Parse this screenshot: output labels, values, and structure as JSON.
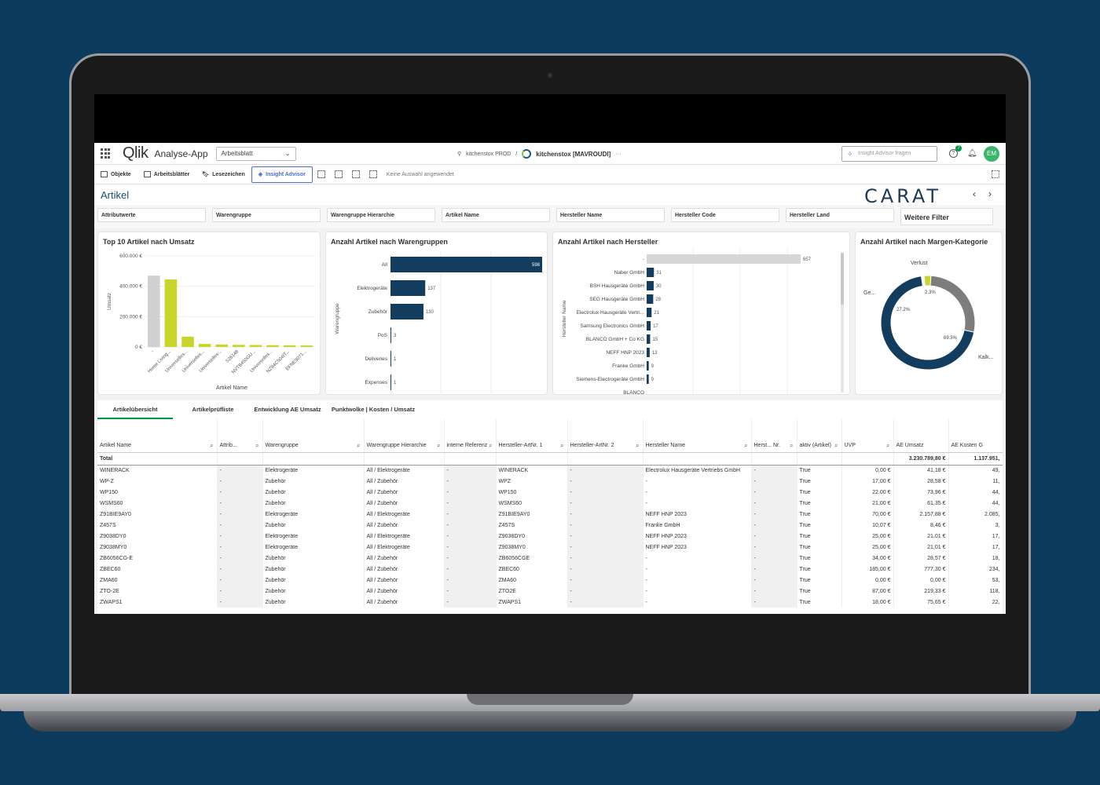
{
  "topbar": {
    "logo": "Qlik",
    "app_title": "Analyse-App",
    "sheet_select": "Arbeitsblatt",
    "space_env": "kitchenstox PROD",
    "separator": "/",
    "space_name": "kitchenstox [MAVROUDI]",
    "more": "···",
    "ask_placeholder": "Insight Advisor fragen",
    "help_badge": "7",
    "avatar": "EM"
  },
  "toolbar": {
    "objects": "Objekte",
    "sheets": "Arbeitsblätter",
    "bookmarks": "Lesezeichen",
    "insight_advisor": "Insight Advisor",
    "no_selection": "Keine Auswahl angewendet"
  },
  "sheet": {
    "title": "Artikel",
    "brand": "CARAT",
    "prev": "‹",
    "next": "›"
  },
  "filters": [
    "Attributwerte",
    "Warengruppe",
    "Warengruppe Hierarchie",
    "Artikel Name",
    "Hersteller Name",
    "Hersteller Code",
    "Hersteller Land"
  ],
  "more_filters": "Weitere Filter",
  "charts": {
    "top10": {
      "title": "Top 10 Artikel nach Umsatz",
      "ylabel": "Umsatz",
      "xlabel": "Artikel Name",
      "yticks": [
        "600.000 €",
        "400.000 €",
        "200.000 €",
        "0 €"
      ],
      "colors": [
        "#d0d0d0",
        "#c9d52b"
      ]
    },
    "warengruppen": {
      "title": "Anzahl Artikel nach Warengruppen",
      "ylabel": "Warengruppe",
      "color": "#123d5e"
    },
    "hersteller": {
      "title": "Anzahl Artikel nach Hersteller",
      "ylabel": "Hersteller Name",
      "color": "#123d5e"
    },
    "margen": {
      "title": "Anzahl Artikel nach Margen-Kategorie",
      "labels": [
        "Verlust",
        "Ge...",
        "Kalk..."
      ],
      "pct": [
        "2.3%",
        "27.2%",
        "69.5%"
      ],
      "colors": [
        "#c9d52b",
        "#7d7d7d",
        "#123d5e"
      ]
    }
  },
  "chart_data": [
    {
      "type": "bar",
      "title": "Top 10 Artikel nach Umsatz",
      "xlabel": "Artikel Name",
      "ylabel": "Umsatz",
      "ylim": [
        0,
        600000
      ],
      "categories": [
        "-",
        "Home Living...",
        "Universelles...",
        "Universelles...",
        "Universelles...",
        "526148",
        "NVTB450GU...",
        "Universelles...",
        "NZ84C504IT...",
        "EFNE9071..."
      ],
      "values": [
        470000,
        445000,
        68000,
        20000,
        16000,
        14000,
        13000,
        12000,
        11000,
        10000
      ]
    },
    {
      "type": "bar",
      "title": "Anzahl Artikel nach Warengruppen",
      "ylabel": "Warengruppe",
      "orientation": "horizontal",
      "categories": [
        "All",
        "Elektrogeräte",
        "Zubehör",
        "PoS",
        "Deliveries",
        "Expenses"
      ],
      "values": [
        598,
        137,
        130,
        3,
        1,
        1
      ]
    },
    {
      "type": "bar",
      "title": "Anzahl Artikel nach Hersteller",
      "ylabel": "Hersteller Name",
      "orientation": "horizontal",
      "categories": [
        "-",
        "Naber GmbH",
        "BSH Hausgeräte GmbH",
        "SEG Hausgeräte GmbH",
        "Electrolux Hausgeräte Vertri...",
        "Samsung Electronics GmbH",
        "BLANCO GmbH + Co KG",
        "NEFF HNP 2023",
        "Franke GmbH",
        "Siemens-Electrogeräte GmbH",
        "BLANCO"
      ],
      "values": [
        657,
        31,
        30,
        28,
        21,
        17,
        15,
        13,
        9,
        9,
        0
      ]
    },
    {
      "type": "pie",
      "title": "Anzahl Artikel nach Margen-Kategorie",
      "categories": [
        "Verlust",
        "Ge...",
        "Kalk..."
      ],
      "values": [
        2.3,
        27.2,
        69.5
      ]
    }
  ],
  "tabs": [
    "Artikelübersicht",
    "Artikelprüfliste",
    "Entwicklung AE Umsatz",
    "Punktwolke | Kosten / Umsatz"
  ],
  "table": {
    "headers": [
      "Artikel Name",
      "Attrib...",
      "Warengruppe",
      "Warengruppe Hierarchie",
      "interne Referenz",
      "Hersteller-ArtNr. 1",
      "Hersteller-ArtNr. 2",
      "Hersteller Name",
      "Herst... Nr.",
      "aktiv (Artikel)",
      "UVP",
      "AE Umsatz",
      "AE Kosten G"
    ],
    "total": [
      "Total",
      "",
      "",
      "",
      "",
      "",
      "",
      "",
      "",
      "",
      "",
      "3.230.789,80 €",
      "1.137.951,"
    ],
    "rows": [
      [
        "WINERACK",
        "-",
        "Elektrogeräte",
        "All / Elektrogeräte",
        "-",
        "WINERACK",
        "-",
        "Electrolux Hausgeräte Vertriebs GmbH",
        "-",
        "True",
        "0,00 €",
        "41,18 €",
        "49,"
      ],
      [
        "WP-Z",
        "-",
        "Zubehör",
        "All / Zubehör",
        "-",
        "WPZ",
        "-",
        "-",
        "-",
        "True",
        "17,00 €",
        "28,58 €",
        "11,"
      ],
      [
        "WP150",
        "-",
        "Zubehör",
        "All / Zubehör",
        "-",
        "WP150",
        "-",
        "-",
        "-",
        "True",
        "22,00 €",
        "73,96 €",
        "44,"
      ],
      [
        "WSMS60",
        "-",
        "Zubehör",
        "All / Zubehör",
        "-",
        "WSMS60",
        "-",
        "-",
        "-",
        "True",
        "21,00 €",
        "61,35 €",
        "44,"
      ],
      [
        "Z91BIE9AY0",
        "-",
        "Elektrogeräte",
        "All / Elektrogeräte",
        "-",
        "Z91BIE9AY0",
        "-",
        "NEFF HNP 2023",
        "-",
        "True",
        "70,00 €",
        "2.157,88 €",
        "2.085,"
      ],
      [
        "Z457S",
        "-",
        "Zubehör",
        "All / Zubehör",
        "-",
        "Z457S",
        "-",
        "Franke GmbH",
        "-",
        "True",
        "10,07 €",
        "8,46 €",
        "3,"
      ],
      [
        "Z9038DY0",
        "-",
        "Elektrogeräte",
        "All / Elektrogeräte",
        "-",
        "Z9038DY0",
        "-",
        "NEFF HNP 2023",
        "-",
        "True",
        "25,00 €",
        "21,01 €",
        "17,"
      ],
      [
        "Z9038MY0",
        "-",
        "Elektrogeräte",
        "All / Elektrogeräte",
        "-",
        "Z9038MY0",
        "-",
        "NEFF HNP 2023",
        "-",
        "True",
        "25,00 €",
        "21,01 €",
        "17,"
      ],
      [
        "ZB6056CG-E",
        "-",
        "Zubehör",
        "All / Zubehör",
        "-",
        "ZB6056CGE",
        "-",
        "-",
        "-",
        "True",
        "34,00 €",
        "28,57 €",
        "18,"
      ],
      [
        "ZBEC60",
        "-",
        "Zubehör",
        "All / Zubehör",
        "-",
        "ZBEC60",
        "-",
        "-",
        "-",
        "True",
        "185,00 €",
        "777,30 €",
        "234,"
      ],
      [
        "ZMA60",
        "-",
        "Zubehör",
        "All / Zubehör",
        "-",
        "ZMA60",
        "-",
        "-",
        "-",
        "True",
        "0,00 €",
        "0,00 €",
        "53,"
      ],
      [
        "ZTO-2E",
        "-",
        "Zubehör",
        "All / Zubehör",
        "-",
        "ZTO2E",
        "-",
        "-",
        "-",
        "True",
        "87,00 €",
        "219,33 €",
        "118,"
      ],
      [
        "ZWAPS1",
        "-",
        "Zubehör",
        "All / Zubehör",
        "-",
        "ZWAPS1",
        "-",
        "-",
        "-",
        "True",
        "18,00 €",
        "75,65 €",
        "22,"
      ]
    ]
  }
}
